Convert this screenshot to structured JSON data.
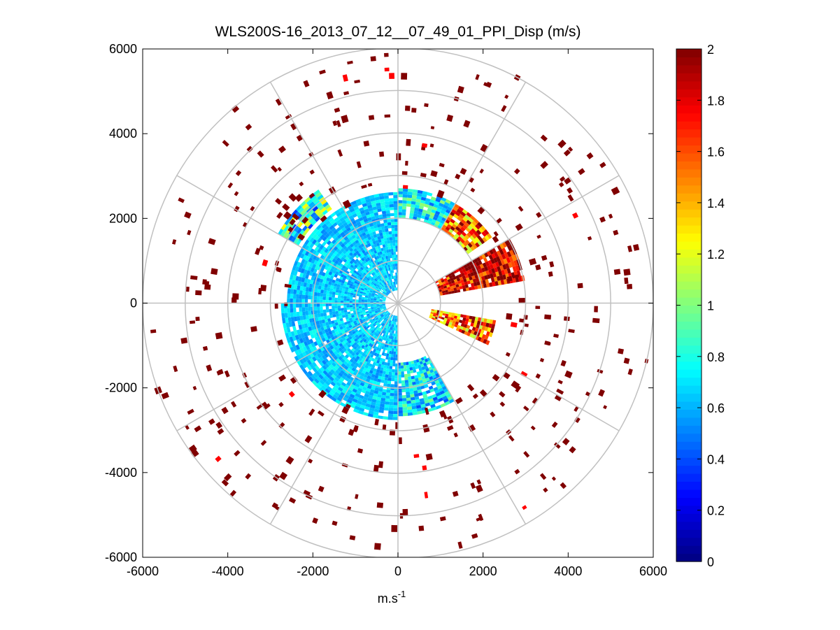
{
  "chart_data": {
    "type": "heatmap",
    "subtype": "polar-ppi",
    "title": "WLS200S-16_2013_07_12__07_49_01_PPI_Disp (m/s)",
    "xlabel": "m.s",
    "xlabel_superscript": "-1",
    "ylabel": "",
    "xlim": [
      -6000,
      6000
    ],
    "ylim": [
      -6000,
      6000
    ],
    "xticks": [
      -6000,
      -4000,
      -2000,
      0,
      2000,
      4000,
      6000
    ],
    "yticks": [
      -6000,
      -4000,
      -2000,
      0,
      2000,
      4000,
      6000
    ],
    "xtick_labels": [
      "-6000",
      "-4000",
      "-2000",
      "0",
      "2000",
      "4000",
      "6000"
    ],
    "ytick_labels": [
      "-6000",
      "-4000",
      "-2000",
      "0",
      "2000",
      "4000",
      "6000"
    ],
    "polar_grid": {
      "ring_radii": [
        1000,
        2000,
        3000,
        4000,
        5000,
        6000
      ],
      "spoke_angles_deg": [
        0,
        30,
        60,
        90,
        120,
        150,
        180,
        210,
        240,
        270,
        300,
        330
      ]
    },
    "colorbar": {
      "colormap": "jet",
      "range": [
        0,
        2
      ],
      "ticks": [
        0,
        0.2,
        0.4,
        0.6,
        0.8,
        1,
        1.2,
        1.4,
        1.6,
        1.8,
        2
      ],
      "tick_labels": [
        "0",
        "0.2",
        "0.4",
        "0.6",
        "0.8",
        "1",
        "1.2",
        "1.4",
        "1.6",
        "1.8",
        "2"
      ]
    },
    "sectors": [
      {
        "az_start_deg": 180,
        "az_end_deg": 270,
        "r_min": 300,
        "r_max": 2700,
        "value_mean": 0.65,
        "value_spread": 0.15
      },
      {
        "az_start_deg": 270,
        "az_end_deg": 360,
        "r_min": 300,
        "r_max": 2600,
        "value_mean": 0.65,
        "value_spread": 0.15
      },
      {
        "az_start_deg": 0,
        "az_end_deg": 30,
        "r_min": 2000,
        "r_max": 2700,
        "value_mean": 0.75,
        "value_spread": 0.3
      },
      {
        "az_start_deg": 30,
        "az_end_deg": 55,
        "r_min": 2000,
        "r_max": 2700,
        "value_mean": 1.6,
        "value_spread": 0.5
      },
      {
        "az_start_deg": 60,
        "az_end_deg": 80,
        "r_min": 1000,
        "r_max": 3000,
        "value_mean": 1.8,
        "value_spread": 0.4
      },
      {
        "az_start_deg": 100,
        "az_end_deg": 115,
        "r_min": 800,
        "r_max": 2300,
        "value_mean": 1.6,
        "value_spread": 0.5
      },
      {
        "az_start_deg": 150,
        "az_end_deg": 180,
        "r_min": 1400,
        "r_max": 2600,
        "value_mean": 0.7,
        "value_spread": 0.3
      },
      {
        "az_start_deg": 300,
        "az_end_deg": 325,
        "r_min": 2700,
        "r_max": 3200,
        "value_mean": 0.8,
        "value_spread": 0.5
      }
    ],
    "scattered_returns": {
      "r_min": 2600,
      "r_max": 6000,
      "typical_value": 2,
      "occasional_value": 1.75,
      "approx_count": 330
    }
  }
}
